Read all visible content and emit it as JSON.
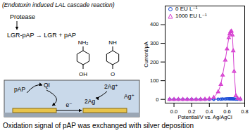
{
  "diagram": {
    "header": "(Endotoxin induced LAL cascade reaction)",
    "enzyme": "Protease",
    "reaction": "LGR-pAP → LGR + pAP",
    "molecules": [
      {
        "top": "NH₂",
        "bottom": "OH"
      },
      {
        "top": "NH",
        "bottom": "O"
      }
    ],
    "cell_labels": {
      "pap": "pAP",
      "qi": "QI",
      "ag_deposit": "2Ag",
      "ag_ions": "2Ag⁺",
      "ag_ion": "Ag⁺",
      "electron": "e⁻"
    },
    "caption": "Oxidation signal of pAP was exchanged with silver deposition"
  },
  "chart_data": {
    "type": "line",
    "x_label": "Potential/V vs. Ag/AgCl",
    "y_label": "Current/μA",
    "x": [
      -0.05,
      0.0,
      0.05,
      0.1,
      0.15,
      0.2,
      0.25,
      0.3,
      0.35,
      0.4,
      0.45,
      0.5,
      0.53,
      0.55,
      0.58,
      0.6,
      0.62,
      0.63,
      0.64,
      0.65,
      0.66,
      0.67,
      0.68,
      0.7,
      0.72,
      0.75
    ],
    "series": [
      {
        "name": "0 EU L⁻¹",
        "color": "#1f4fd8",
        "marker": "circle",
        "values": [
          0,
          0,
          0,
          0,
          0,
          0,
          0,
          0,
          0,
          0,
          0,
          1,
          1,
          2,
          2,
          3,
          3,
          3,
          3,
          3,
          3,
          2,
          2,
          1,
          1,
          0
        ]
      },
      {
        "name": "1000 EU L⁻¹",
        "color": "#d63fd0",
        "marker": "triangle",
        "values": [
          0,
          0,
          0,
          0,
          0,
          0,
          0,
          0,
          1,
          3,
          10,
          40,
          80,
          130,
          210,
          270,
          330,
          350,
          362,
          365,
          345,
          260,
          150,
          20,
          5,
          2
        ]
      }
    ],
    "xlim": [
      -0.1,
      0.8
    ],
    "xticks": [
      {
        "value": 0,
        "label": "0.0"
      },
      0.2,
      0.4,
      0.6,
      0.8
    ],
    "ylim": [
      -20,
      500
    ],
    "yticks": [
      0,
      100,
      200,
      300,
      400
    ],
    "legend": "top-left",
    "grid": false
  }
}
